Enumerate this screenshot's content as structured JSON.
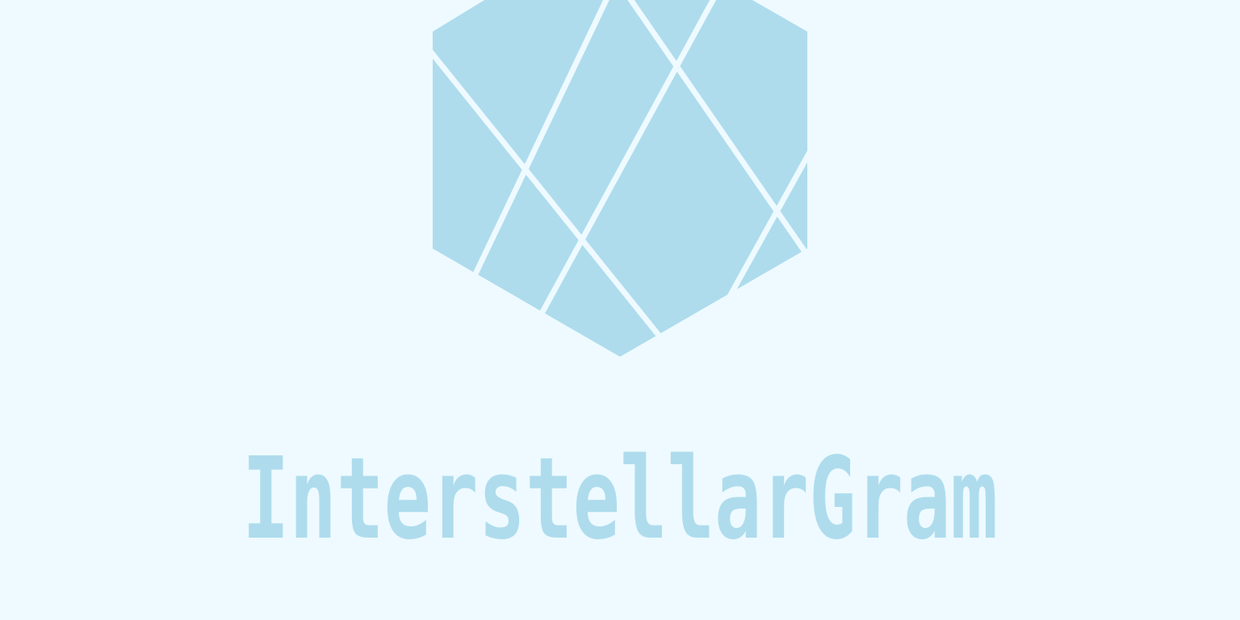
{
  "brand": {
    "name": "InterstellarGram",
    "mark_icon": "faceted-hexagon-icon",
    "colors": {
      "background": "#eefaff",
      "mark": "#aedced",
      "gap": "#eefaff"
    }
  }
}
